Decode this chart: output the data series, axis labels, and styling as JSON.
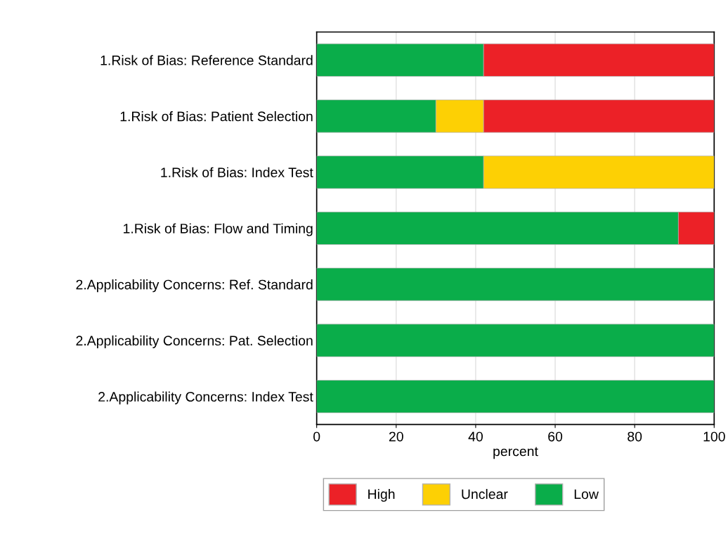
{
  "chart_data": {
    "type": "bar",
    "orientation": "horizontal",
    "stacked": true,
    "xlabel": "percent",
    "categories": [
      "1.Risk of Bias: Reference Standard",
      "1.Risk of Bias: Patient Selection",
      "1.Risk of Bias: Index Test",
      "1.Risk of Bias: Flow and Timing",
      "2.Applicability Concerns: Ref. Standard",
      "2.Applicability Concerns: Pat. Selection",
      "2.Applicability Concerns: Index Test"
    ],
    "series": [
      {
        "name": "Low",
        "color": "#0aad4a",
        "values": [
          42,
          30,
          42,
          91,
          100,
          100,
          100
        ]
      },
      {
        "name": "Unclear",
        "color": "#fdd004",
        "values": [
          0,
          12,
          58,
          0,
          0,
          0,
          0
        ]
      },
      {
        "name": "High",
        "color": "#ec2127",
        "values": [
          58,
          58,
          0,
          9,
          0,
          0,
          0
        ]
      }
    ],
    "xlim": [
      0,
      100
    ],
    "xticks": [
      0,
      20,
      40,
      60,
      80,
      100
    ],
    "grid": "x",
    "legend": "bottom"
  }
}
